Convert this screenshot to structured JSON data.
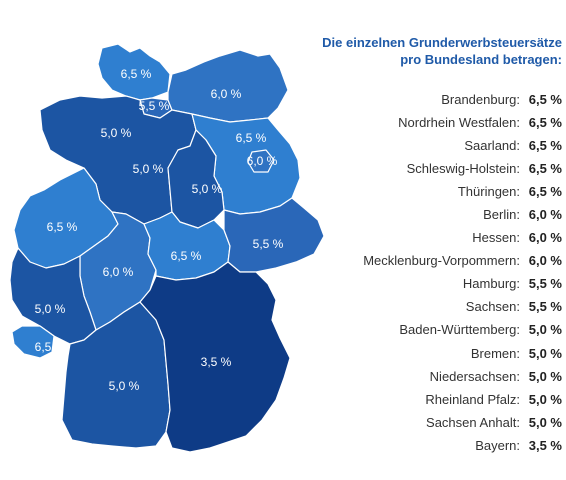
{
  "legend": {
    "title_line1": "Die einzelnen Grunderwerbsteuersätze",
    "title_line2": "pro Bundesland betragen:",
    "items": [
      {
        "state": "Brandenburg:",
        "rate": "6,5 %"
      },
      {
        "state": "Nordrhein Westfalen:",
        "rate": "6,5 %"
      },
      {
        "state": "Saarland:",
        "rate": "6,5 %"
      },
      {
        "state": "Schleswig-Holstein:",
        "rate": "6,5 %"
      },
      {
        "state": "Thüringen:",
        "rate": "6,5 %"
      },
      {
        "state": "Berlin:",
        "rate": "6,0 %"
      },
      {
        "state": "Hessen:",
        "rate": "6,0 %"
      },
      {
        "state": "Mecklenburg-Vorpommern:",
        "rate": "6,0 %"
      },
      {
        "state": "Hamburg:",
        "rate": "5,5 %"
      },
      {
        "state": "Sachsen:",
        "rate": "5,5 %"
      },
      {
        "state": "Baden-Württemberg:",
        "rate": "5,0 %"
      },
      {
        "state": "Bremen:",
        "rate": "5,0 %"
      },
      {
        "state": "Niedersachsen:",
        "rate": "5,0 %"
      },
      {
        "state": "Rheinland Pfalz:",
        "rate": "5,0 %"
      },
      {
        "state": "Sachsen Anhalt:",
        "rate": "5,0 %"
      },
      {
        "state": "Bayern:",
        "rate": "3,5 %"
      }
    ]
  },
  "map": {
    "colors": {
      "6,5 %": "#2f7fd0",
      "6,0 %": "#2f73c3",
      "5,5 %": "#2a67b8",
      "5,0 %": "#1c55a3",
      "3,5 %": "#0e3b86"
    },
    "regions": [
      {
        "name": "Schleswig-Holstein",
        "label": "6,5 %"
      },
      {
        "name": "Hamburg",
        "label": "5,5 %"
      },
      {
        "name": "Mecklenburg-Vorpommern",
        "label": "6,0 %"
      },
      {
        "name": "Bremen",
        "label": "5,0 %"
      },
      {
        "name": "Niedersachsen",
        "label": "5,0 %"
      },
      {
        "name": "Brandenburg",
        "label": "6,5 %"
      },
      {
        "name": "Berlin",
        "label": "6,0 %"
      },
      {
        "name": "Sachsen-Anhalt",
        "label": "5,0 %"
      },
      {
        "name": "Nordrhein-Westfalen",
        "label": "6,5 %"
      },
      {
        "name": "Hessen",
        "label": "6,0 %"
      },
      {
        "name": "Thüringen",
        "label": "6,5 %"
      },
      {
        "name": "Sachsen",
        "label": "5,5 %"
      },
      {
        "name": "Rheinland-Pfalz",
        "label": "5,0 %"
      },
      {
        "name": "Saarland",
        "label": "6,5 %"
      },
      {
        "name": "Baden-Württemberg",
        "label": "5,0 %"
      },
      {
        "name": "Bayern",
        "label": "3,5 %"
      }
    ]
  }
}
